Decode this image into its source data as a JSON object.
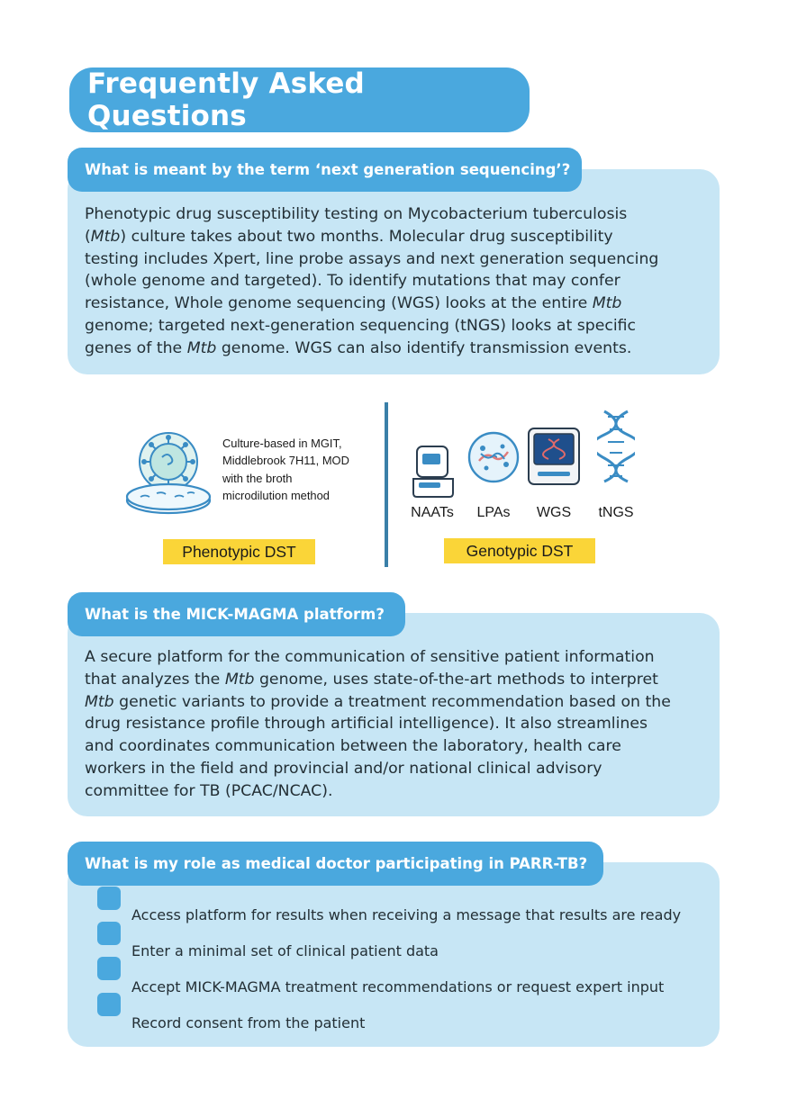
{
  "page_title": "Frequently Asked Questions",
  "faq1": {
    "question": "What is meant by the term ‘next generation sequencing’?",
    "lines": [
      [
        "Phenotypic drug susceptibility testing on Mycobacterium tuberculosis"
      ],
      [
        "(",
        {
          "i": "Mtb"
        },
        ")  culture takes about two months. Molecular drug susceptibility"
      ],
      [
        "testing includes Xpert, line probe assays and next generation sequencing"
      ],
      [
        "(whole genome and targeted). To identify mutations that may confer"
      ],
      [
        "resistance, Whole genome sequencing (WGS) looks at the entire ",
        {
          "i": "Mtb"
        }
      ],
      [
        "genome; targeted next-generation sequencing (tNGS) looks at specific"
      ],
      [
        "genes of the ",
        {
          "i": "Mtb"
        },
        " genome. WGS can also identify transmission events."
      ]
    ]
  },
  "figure": {
    "phenotypic_description_lines": [
      "Culture-based in MGIT,",
      "Middlebrook 7H11, MOD",
      "with the broth",
      "microdilution method"
    ],
    "phenotypic_tag": "Phenotypic DST",
    "genotypic_tag": "Genotypic DST",
    "genotypic_methods": [
      "NAATs",
      "LPAs",
      "WGS",
      "tNGS"
    ],
    "colors": {
      "tag": "#fad538",
      "divider": "#3a7fa8",
      "icon_blue": "#3a8cc4"
    }
  },
  "faq2": {
    "question": "What is the MICK-MAGMA platform?",
    "lines": [
      [
        "A secure platform for the communication of sensitive patient information"
      ],
      [
        "that analyzes the ",
        {
          "i": "Mtb"
        },
        " genome, uses state-of-the-art methods to interpret"
      ],
      [
        {
          "i": "Mtb"
        },
        " genetic variants to provide a treatment recommendation based on the"
      ],
      [
        "drug resistance profile through artificial intelligence). It also streamlines"
      ],
      [
        "and coordinates communication between the laboratory, health care"
      ],
      [
        "workers in the field and provincial and/or national clinical advisory"
      ],
      [
        "committee for TB (PCAC/NCAC)."
      ]
    ]
  },
  "faq3": {
    "question": "What is my role as medical doctor participating in PARR-TB?",
    "items": [
      "Access platform for results when receiving a message that results are ready",
      "Enter a minimal set of clinical patient data",
      "Accept MICK-MAGMA treatment recommendations or request expert input",
      "Record consent from the patient"
    ]
  },
  "colors": {
    "accent": "#4aa8de",
    "panel": "#c7e6f5",
    "text": "#232f35"
  }
}
